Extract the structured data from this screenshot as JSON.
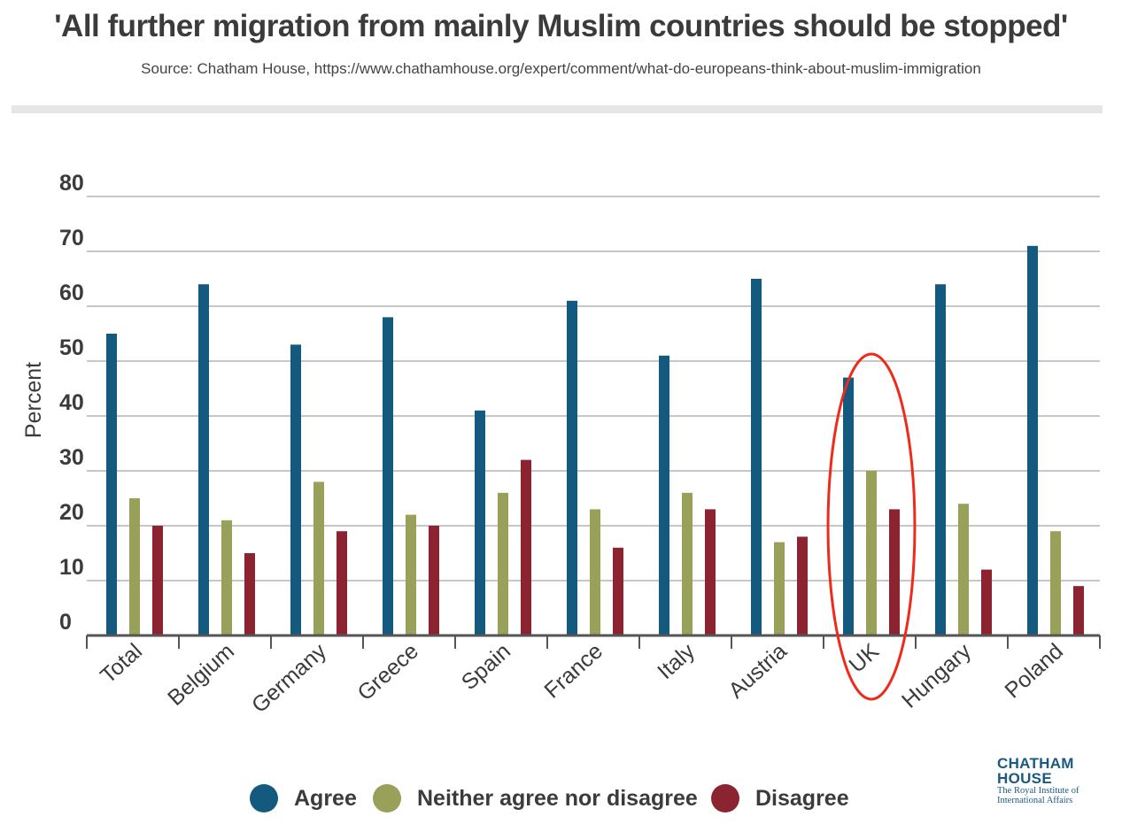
{
  "title": "'All further migration from mainly Muslim countries should be stopped'",
  "subtitle": "Source: Chatham House, https://www.chathamhouse.org/expert/comment/what-do-europeans-think-about-muslim-immigration",
  "logo": {
    "line1": "CHATHAM",
    "line2": "HOUSE",
    "line3": "The Royal Institute of",
    "line4": "International Affairs"
  },
  "colors": {
    "agree": "#145a7f",
    "neither": "#98a05a",
    "disagree": "#8b2330",
    "highlight": "#ee2b1a",
    "grid": "#b3b3b3",
    "axis": "#555555"
  },
  "chart_data": {
    "type": "bar",
    "title": "'All further migration from mainly Muslim countries should be stopped'",
    "ylabel": "Percent",
    "xlabel": "",
    "ylim": [
      0,
      80
    ],
    "yticks": [
      0,
      10,
      20,
      30,
      40,
      50,
      60,
      70,
      80
    ],
    "grid": true,
    "legend_position": "bottom",
    "categories": [
      "Total",
      "Belgium",
      "Germany",
      "Greece",
      "Spain",
      "France",
      "Italy",
      "Austria",
      "UK",
      "Hungary",
      "Poland"
    ],
    "series": [
      {
        "name": "Agree",
        "color": "#145a7f",
        "values": [
          55,
          64,
          53,
          58,
          41,
          61,
          51,
          65,
          47,
          64,
          71
        ]
      },
      {
        "name": "Neither agree nor disagree",
        "color": "#98a05a",
        "values": [
          25,
          21,
          28,
          22,
          26,
          23,
          26,
          17,
          30,
          24,
          19
        ]
      },
      {
        "name": "Disagree",
        "color": "#8b2330",
        "values": [
          20,
          15,
          19,
          20,
          32,
          16,
          23,
          18,
          23,
          12,
          9
        ]
      }
    ],
    "highlighted_category": "UK"
  }
}
